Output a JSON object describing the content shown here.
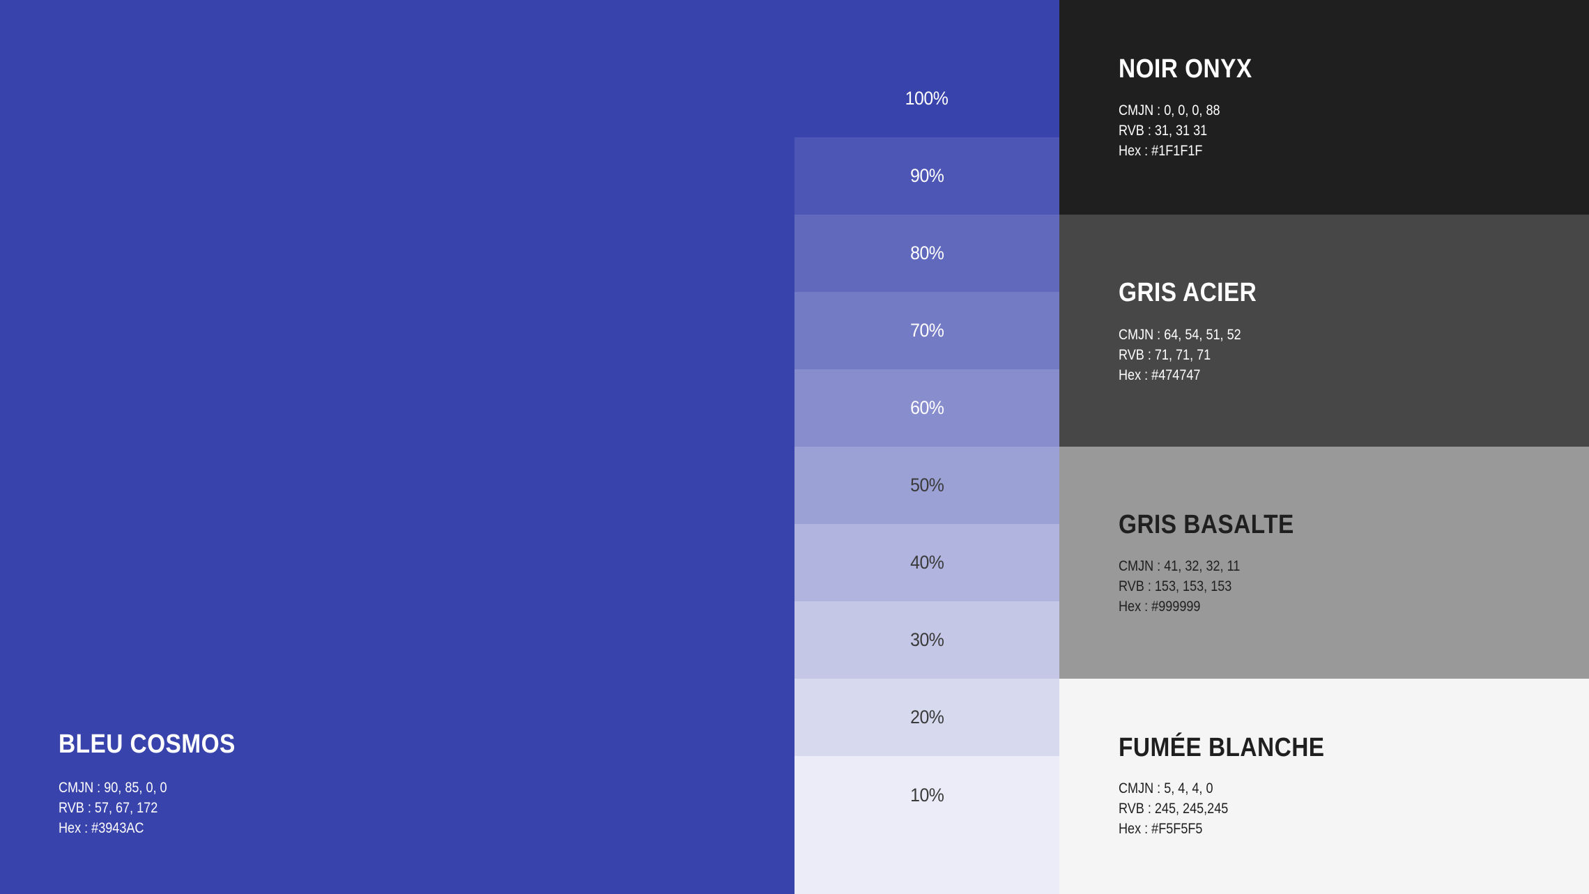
{
  "primary": {
    "name": "BLEU COSMOS",
    "cmjn": "CMJN : 90, 85, 0, 0",
    "rvb": "RVB : 57, 67, 172",
    "hex": "Hex : #3943AC",
    "color": "#3943AC"
  },
  "shades": [
    {
      "label": "100%",
      "color": "#3943AC",
      "text_color": "#ffffff"
    },
    {
      "label": "90%",
      "color": "#4D56B4",
      "text_color": "#ffffff"
    },
    {
      "label": "80%",
      "color": "#6169BD",
      "text_color": "#ffffff"
    },
    {
      "label": "70%",
      "color": "#747BC5",
      "text_color": "#ffffff"
    },
    {
      "label": "60%",
      "color": "#888ECD",
      "text_color": "#ffffff"
    },
    {
      "label": "50%",
      "color": "#9CA1D5",
      "text_color": "#3a3a3a"
    },
    {
      "label": "40%",
      "color": "#B0B4DE",
      "text_color": "#3a3a3a"
    },
    {
      "label": "30%",
      "color": "#C4C7E6",
      "text_color": "#3a3a3a"
    },
    {
      "label": "20%",
      "color": "#D7D9EE",
      "text_color": "#3a3a3a"
    },
    {
      "label": "10%",
      "color": "#EBECF7",
      "text_color": "#3a3a3a"
    }
  ],
  "swatches": [
    {
      "name": "NOIR ONYX",
      "cmjn": "CMJN : 0, 0, 0, 88",
      "rvb": "RVB : 31, 31 31",
      "hex": "Hex : #1F1F1F",
      "color": "#1F1F1F",
      "text_color": "#ffffff"
    },
    {
      "name": "GRIS ACIER",
      "cmjn": "CMJN : 64, 54, 51, 52",
      "rvb": "RVB : 71, 71, 71",
      "hex": "Hex : #474747",
      "color": "#474747",
      "text_color": "#ffffff"
    },
    {
      "name": "GRIS BASALTE",
      "cmjn": "CMJN : 41, 32, 32, 11",
      "rvb": "RVB : 153, 153, 153",
      "hex": "Hex : #999999",
      "color": "#999999",
      "text_color": "#1F1F1F"
    },
    {
      "name": "FUMÉE BLANCHE",
      "cmjn": "CMJN : 5, 4, 4, 0",
      "rvb": "RVB : 245, 245,245",
      "hex": "Hex : #F5F5F5",
      "color": "#F5F5F5",
      "text_color": "#1F1F1F"
    }
  ]
}
